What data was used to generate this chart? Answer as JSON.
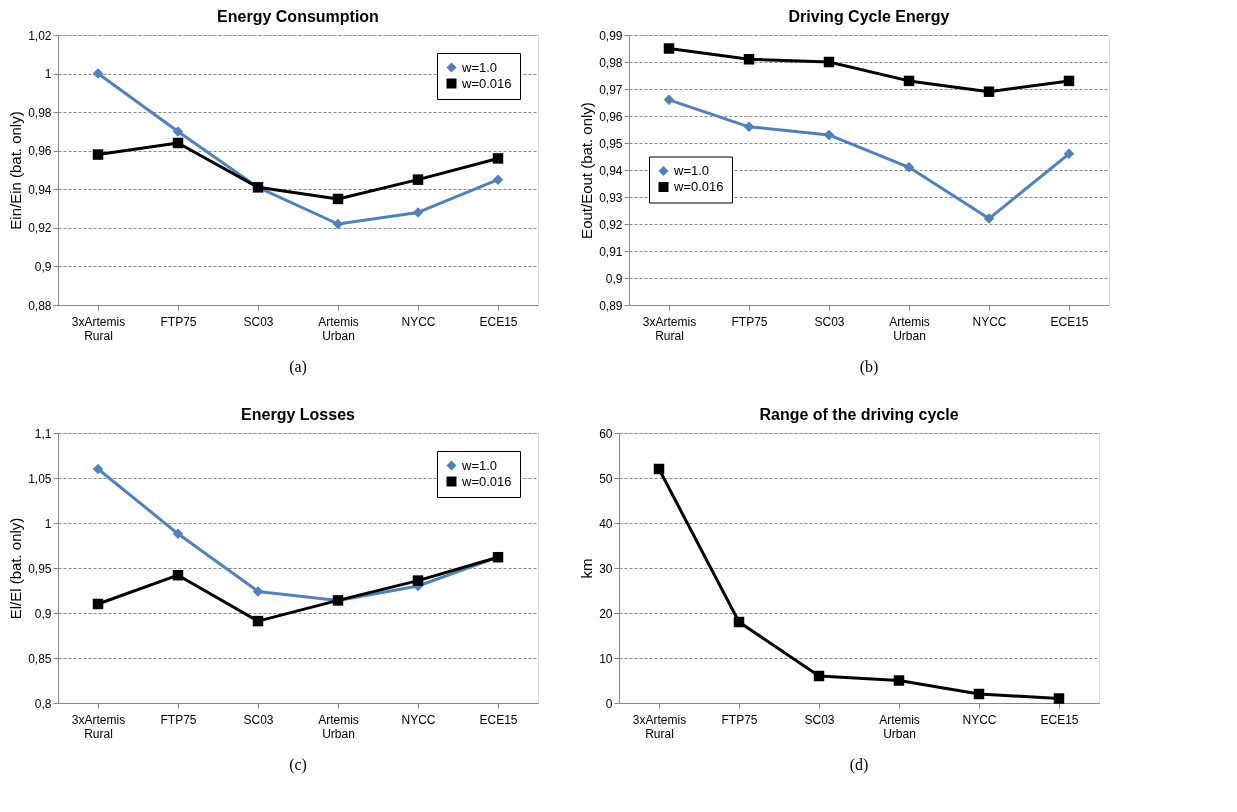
{
  "chart_data": [
    {
      "type": "line",
      "title": "Energy Consumption",
      "ylabel": "Ein/Ein (bat. only)",
      "categories": [
        "3xArtemis Rural",
        "FTP75",
        "SC03",
        "Artemis Urban",
        "NYCC",
        "ECE15"
      ],
      "series": [
        {
          "name": "w=1.0",
          "color": "#4f81bd",
          "marker": "diamond",
          "values": [
            1.0,
            0.97,
            0.941,
            0.922,
            0.928,
            0.945
          ]
        },
        {
          "name": "w=0.016",
          "color": "#000000",
          "marker": "square",
          "values": [
            0.958,
            0.964,
            0.941,
            0.935,
            0.945,
            0.956
          ]
        }
      ],
      "ylim": [
        0.88,
        1.02
      ],
      "yticks": [
        {
          "value": 0.88,
          "label": "0,88"
        },
        {
          "value": 0.9,
          "label": "0,9"
        },
        {
          "value": 0.92,
          "label": "0,92"
        },
        {
          "value": 0.94,
          "label": "0,94"
        },
        {
          "value": 0.96,
          "label": "0,96"
        },
        {
          "value": 0.98,
          "label": "0,98"
        },
        1,
        {
          "value": 1.02,
          "label": "1,02"
        }
      ],
      "grid": "y",
      "legend": "top right",
      "annotations": [
        "(a)"
      ]
    },
    {
      "type": "line",
      "title": "Driving Cycle Energy",
      "ylabel": "Eout/Eout (bat. only)",
      "categories": [
        "3xArtemis Rural",
        "FTP75",
        "SC03",
        "Artemis Urban",
        "NYCC",
        "ECE15"
      ],
      "series": [
        {
          "name": "w=1.0",
          "color": "#4f81bd",
          "marker": "diamond",
          "values": [
            0.966,
            0.956,
            0.953,
            0.941,
            0.922,
            0.946
          ]
        },
        {
          "name": "w=0.016",
          "color": "#000000",
          "marker": "square",
          "values": [
            0.985,
            0.981,
            0.98,
            0.973,
            0.969,
            0.973
          ]
        }
      ],
      "ylim": [
        0.89,
        0.99
      ],
      "yticks": [
        {
          "value": 0.89,
          "label": "0,89"
        },
        {
          "value": 0.9,
          "label": "0,9"
        },
        {
          "value": 0.91,
          "label": "0,91"
        },
        {
          "value": 0.92,
          "label": "0,92"
        },
        {
          "value": 0.93,
          "label": "0,93"
        },
        {
          "value": 0.94,
          "label": "0,94"
        },
        {
          "value": 0.95,
          "label": "0,95"
        },
        {
          "value": 0.96,
          "label": "0,96"
        },
        {
          "value": 0.97,
          "label": "0,97"
        },
        {
          "value": 0.98,
          "label": "0,98"
        },
        {
          "value": 0.99,
          "label": "0,99"
        }
      ],
      "grid": "y",
      "legend": "left",
      "annotations": [
        "(b)"
      ]
    },
    {
      "type": "line",
      "title": "Energy Losses",
      "ylabel": "El/El (bat. only)",
      "categories": [
        "3xArtemis Rural",
        "FTP75",
        "SC03",
        "Artemis Urban",
        "NYCC",
        "ECE15"
      ],
      "series": [
        {
          "name": "w=1.0",
          "color": "#4f81bd",
          "marker": "diamond",
          "values": [
            1.06,
            0.988,
            0.924,
            0.914,
            0.93,
            0.962
          ]
        },
        {
          "name": "w=0.016",
          "color": "#000000",
          "marker": "square",
          "values": [
            0.91,
            0.942,
            0.891,
            0.914,
            0.936,
            0.962
          ]
        }
      ],
      "ylim": [
        0.8,
        1.1
      ],
      "yticks": [
        {
          "value": 0.8,
          "label": "0,8"
        },
        {
          "value": 0.85,
          "label": "0,85"
        },
        {
          "value": 0.9,
          "label": "0,9"
        },
        {
          "value": 0.95,
          "label": "0,95"
        },
        1,
        {
          "value": 1.05,
          "label": "1,05"
        },
        {
          "value": 1.1,
          "label": "1,1"
        }
      ],
      "grid": "y",
      "legend": "top right",
      "annotations": [
        "(c)"
      ]
    },
    {
      "type": "line",
      "title": "Range of the driving cycle",
      "ylabel": "km",
      "categories": [
        "3xArtemis Rural",
        "FTP75",
        "SC03",
        "Artemis Urban",
        "NYCC",
        "ECE15"
      ],
      "series": [
        {
          "color": "#000000",
          "marker": "square",
          "values": [
            52,
            18,
            6,
            5,
            2,
            1
          ]
        }
      ],
      "ylim": [
        0,
        60
      ],
      "yticks": [
        0,
        10,
        20,
        30,
        40,
        50,
        60
      ],
      "grid": "y",
      "annotations": [
        "(d)"
      ]
    }
  ]
}
